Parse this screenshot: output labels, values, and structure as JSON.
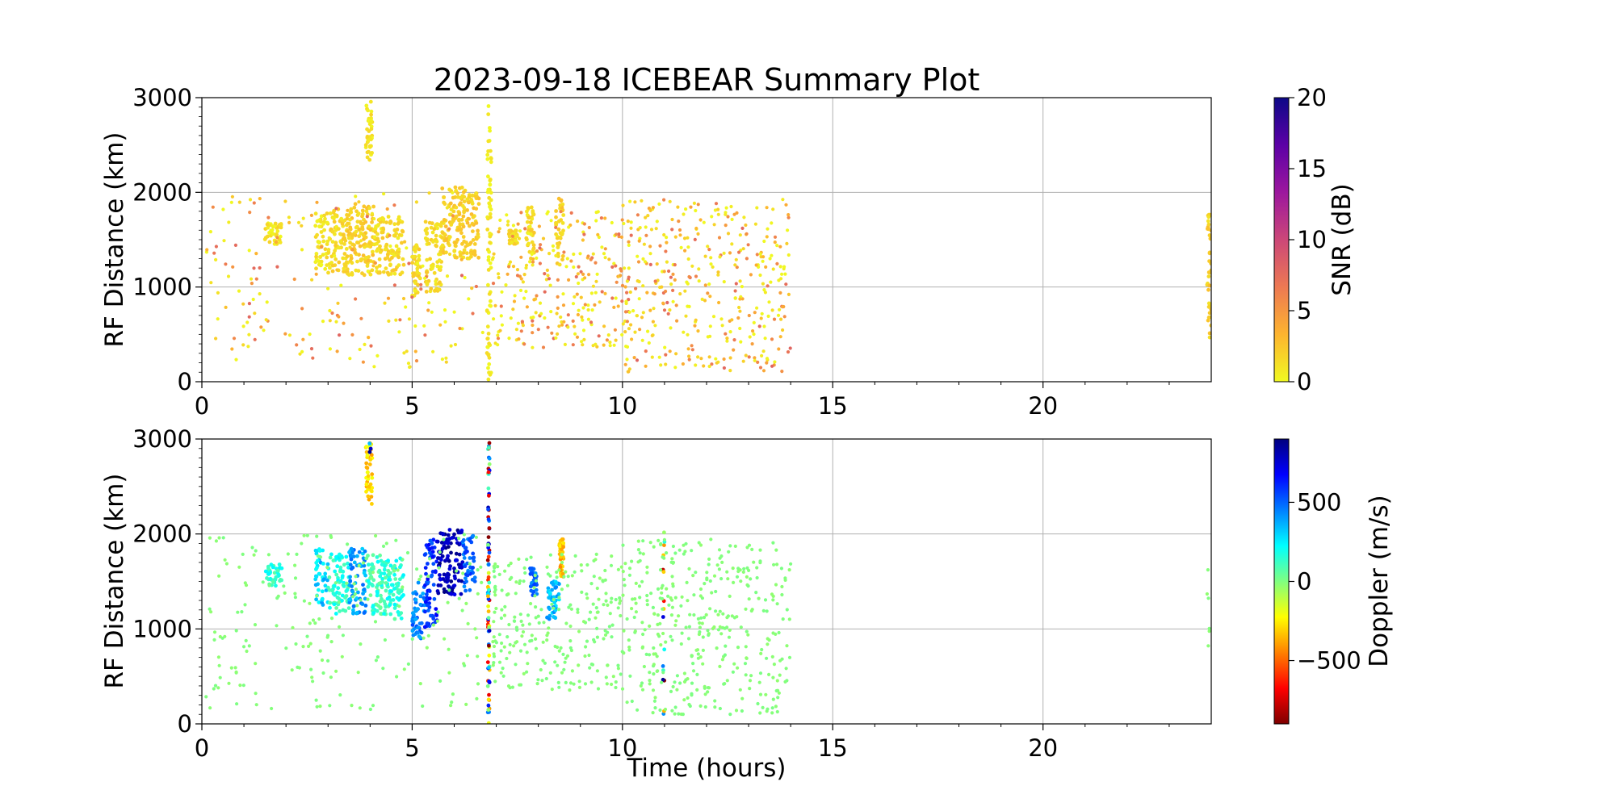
{
  "title": "2023-09-18 ICEBEAR Summary Plot",
  "chart_data": [
    {
      "type": "scatter",
      "panel": "snr",
      "xlabel": "",
      "ylabel": "RF Distance (km)",
      "xlim": [
        0,
        24
      ],
      "ylim": [
        0,
        3000
      ],
      "xticks": [
        0,
        5,
        10,
        15,
        20
      ],
      "yticks": [
        0,
        1000,
        2000,
        3000
      ],
      "grid": true,
      "colorbar": {
        "label": "SNR (dB)",
        "range": [
          0,
          20
        ],
        "ticks": [
          0,
          5,
          10,
          15,
          20
        ],
        "colormap": "plasma_r",
        "colors": [
          "#f0f921",
          "#fdb42f",
          "#ed7953",
          "#cc4778",
          "#9c179e",
          "#5c01a6",
          "#0d0887"
        ]
      },
      "clusters": [
        {
          "t": [
            3.9,
            4.05
          ],
          "r": [
            2280,
            2960
          ],
          "snr": 1
        },
        {
          "t": [
            6.78,
            6.88
          ],
          "r": [
            0,
            2960
          ],
          "snr": 0.5
        },
        {
          "t": [
            2.7,
            3.0
          ],
          "r": [
            1180,
            1800
          ],
          "snr": 1
        },
        {
          "t": [
            3.0,
            3.5
          ],
          "r": [
            1150,
            1830
          ],
          "snr": 1.5
        },
        {
          "t": [
            3.5,
            4.1
          ],
          "r": [
            1120,
            1880
          ],
          "snr": 2
        },
        {
          "t": [
            4.1,
            4.8
          ],
          "r": [
            1130,
            1750
          ],
          "snr": 1.5
        },
        {
          "t": [
            5.0,
            5.2
          ],
          "r": [
            900,
            1450
          ],
          "snr": 1.5
        },
        {
          "t": [
            5.3,
            5.7
          ],
          "r": [
            950,
            1700
          ],
          "snr": 1.5
        },
        {
          "t": [
            5.7,
            6.3
          ],
          "r": [
            1300,
            2060
          ],
          "snr": 2
        },
        {
          "t": [
            6.3,
            6.6
          ],
          "r": [
            1300,
            2000
          ],
          "snr": 2
        },
        {
          "t": [
            7.3,
            7.5
          ],
          "r": [
            1450,
            1600
          ],
          "snr": 1.5
        },
        {
          "t": [
            7.7,
            7.9
          ],
          "r": [
            1300,
            1850
          ],
          "snr": 1.5
        },
        {
          "t": [
            8.4,
            8.6
          ],
          "r": [
            1180,
            1950
          ],
          "snr": 2
        },
        {
          "t": [
            1.5,
            1.9
          ],
          "r": [
            1450,
            1680
          ],
          "snr": 1
        },
        {
          "t": [
            23.9,
            24.0
          ],
          "r": [
            450,
            1800
          ],
          "snr": 2
        }
      ],
      "sparse": [
        {
          "t": [
            0.1,
            6.7
          ],
          "r": [
            150,
            2000
          ],
          "n": 200,
          "snr": [
            0,
            8
          ]
        },
        {
          "t": [
            6.9,
            10.0
          ],
          "r": [
            350,
            1800
          ],
          "n": 250,
          "snr": [
            0,
            8
          ]
        },
        {
          "t": [
            10.0,
            14.0
          ],
          "r": [
            100,
            1950
          ],
          "n": 380,
          "snr": [
            0,
            8
          ]
        }
      ]
    },
    {
      "type": "scatter",
      "panel": "doppler",
      "xlabel": "Time (hours)",
      "ylabel": "RF Distance (km)",
      "xlim": [
        0,
        24
      ],
      "ylim": [
        0,
        3000
      ],
      "xticks": [
        0,
        5,
        10,
        15,
        20
      ],
      "yticks": [
        0,
        1000,
        2000,
        3000
      ],
      "grid": true,
      "colorbar": {
        "label": "Doppler (m/s)",
        "range": [
          -900,
          900
        ],
        "ticks": [
          -500,
          0,
          500
        ],
        "tick_labels": [
          "−500",
          "0",
          "500"
        ],
        "colormap": "jet_r",
        "colors": [
          "#7f0000",
          "#ff0000",
          "#ff8000",
          "#ffff00",
          "#80ff80",
          "#00ffff",
          "#0080ff",
          "#0000ff",
          "#00007f"
        ]
      },
      "clusters": [
        {
          "t": [
            3.9,
            4.05
          ],
          "r": [
            2280,
            2960
          ],
          "v": -300
        },
        {
          "t": [
            2.7,
            3.0
          ],
          "r": [
            1250,
            1850
          ],
          "v": 300
        },
        {
          "t": [
            3.0,
            3.5
          ],
          "r": [
            1150,
            1800
          ],
          "v": 150
        },
        {
          "t": [
            3.5,
            3.9
          ],
          "r": [
            1150,
            1850
          ],
          "v": 400
        },
        {
          "t": [
            3.9,
            4.3
          ],
          "r": [
            1150,
            1800
          ],
          "v": 120
        },
        {
          "t": [
            4.3,
            4.8
          ],
          "r": [
            1100,
            1750
          ],
          "v": 150
        },
        {
          "t": [
            5.0,
            5.3
          ],
          "r": [
            900,
            1550
          ],
          "v": 450
        },
        {
          "t": [
            5.3,
            5.6
          ],
          "r": [
            1000,
            1950
          ],
          "v": 600
        },
        {
          "t": [
            5.6,
            6.2
          ],
          "r": [
            1350,
            2060
          ],
          "v": 800
        },
        {
          "t": [
            6.2,
            6.5
          ],
          "r": [
            1400,
            2000
          ],
          "v": 500
        },
        {
          "t": [
            7.8,
            8.0
          ],
          "r": [
            1350,
            1650
          ],
          "v": 500
        },
        {
          "t": [
            8.2,
            8.5
          ],
          "r": [
            1100,
            1500
          ],
          "v": 350
        },
        {
          "t": [
            8.5,
            8.6
          ],
          "r": [
            1550,
            1950
          ],
          "v": -350
        },
        {
          "t": [
            1.5,
            1.9
          ],
          "r": [
            1450,
            1680
          ],
          "v": 150
        }
      ],
      "mixed_columns": [
        {
          "t": 6.82,
          "r": [
            0,
            2960
          ],
          "n": 90
        },
        {
          "t": 4.0,
          "r": [
            2860,
            2960
          ],
          "n": 8
        },
        {
          "t": 10.98,
          "r": [
            100,
            2200
          ],
          "n": 16
        }
      ],
      "sparse": [
        {
          "t": [
            0.1,
            6.7
          ],
          "r": [
            150,
            2000
          ],
          "n": 200,
          "v": -10
        },
        {
          "t": [
            6.9,
            10.0
          ],
          "r": [
            350,
            1800
          ],
          "n": 250,
          "v": -10
        },
        {
          "t": [
            10.0,
            14.0
          ],
          "r": [
            100,
            1950
          ],
          "n": 380,
          "v": -10
        },
        {
          "t": [
            23.9,
            24.0
          ],
          "r": [
            450,
            1800
          ],
          "n": 6,
          "v": -10
        }
      ]
    }
  ]
}
